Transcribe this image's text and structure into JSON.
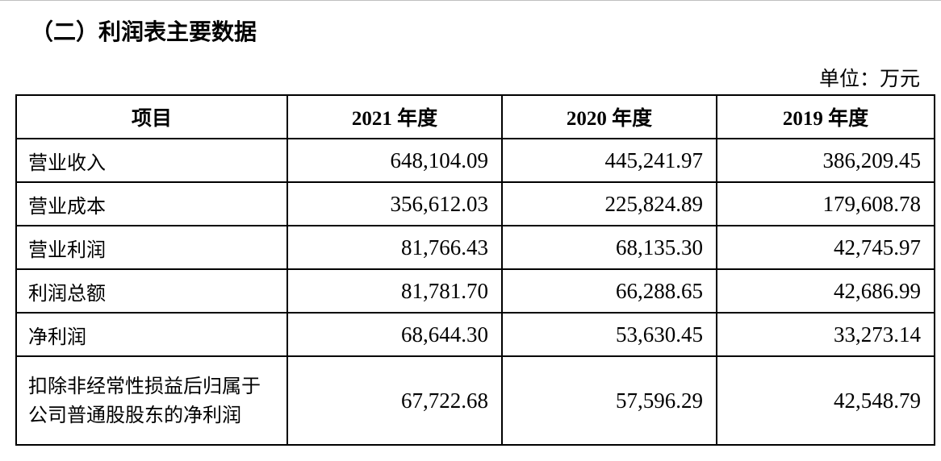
{
  "document": {
    "title": "（二）利润表主要数据",
    "unit": "单位：万元"
  },
  "table": {
    "headers": [
      "项目",
      "2021 年度",
      "2020 年度",
      "2019 年度"
    ],
    "rows": [
      {
        "label": "营业收入",
        "values": [
          "648,104.09",
          "445,241.97",
          "386,209.45"
        ]
      },
      {
        "label": "营业成本",
        "values": [
          "356,612.03",
          "225,824.89",
          "179,608.78"
        ]
      },
      {
        "label": "营业利润",
        "values": [
          "81,766.43",
          "68,135.30",
          "42,745.97"
        ]
      },
      {
        "label": "利润总额",
        "values": [
          "81,781.70",
          "66,288.65",
          "42,686.99"
        ]
      },
      {
        "label": "净利润",
        "values": [
          "68,644.30",
          "53,630.45",
          "33,273.14"
        ]
      },
      {
        "label": "扣除非经常性损益后归属于公司普通股股东的净利润",
        "values": [
          "67,722.68",
          "57,596.29",
          "42,548.79"
        ]
      }
    ]
  }
}
